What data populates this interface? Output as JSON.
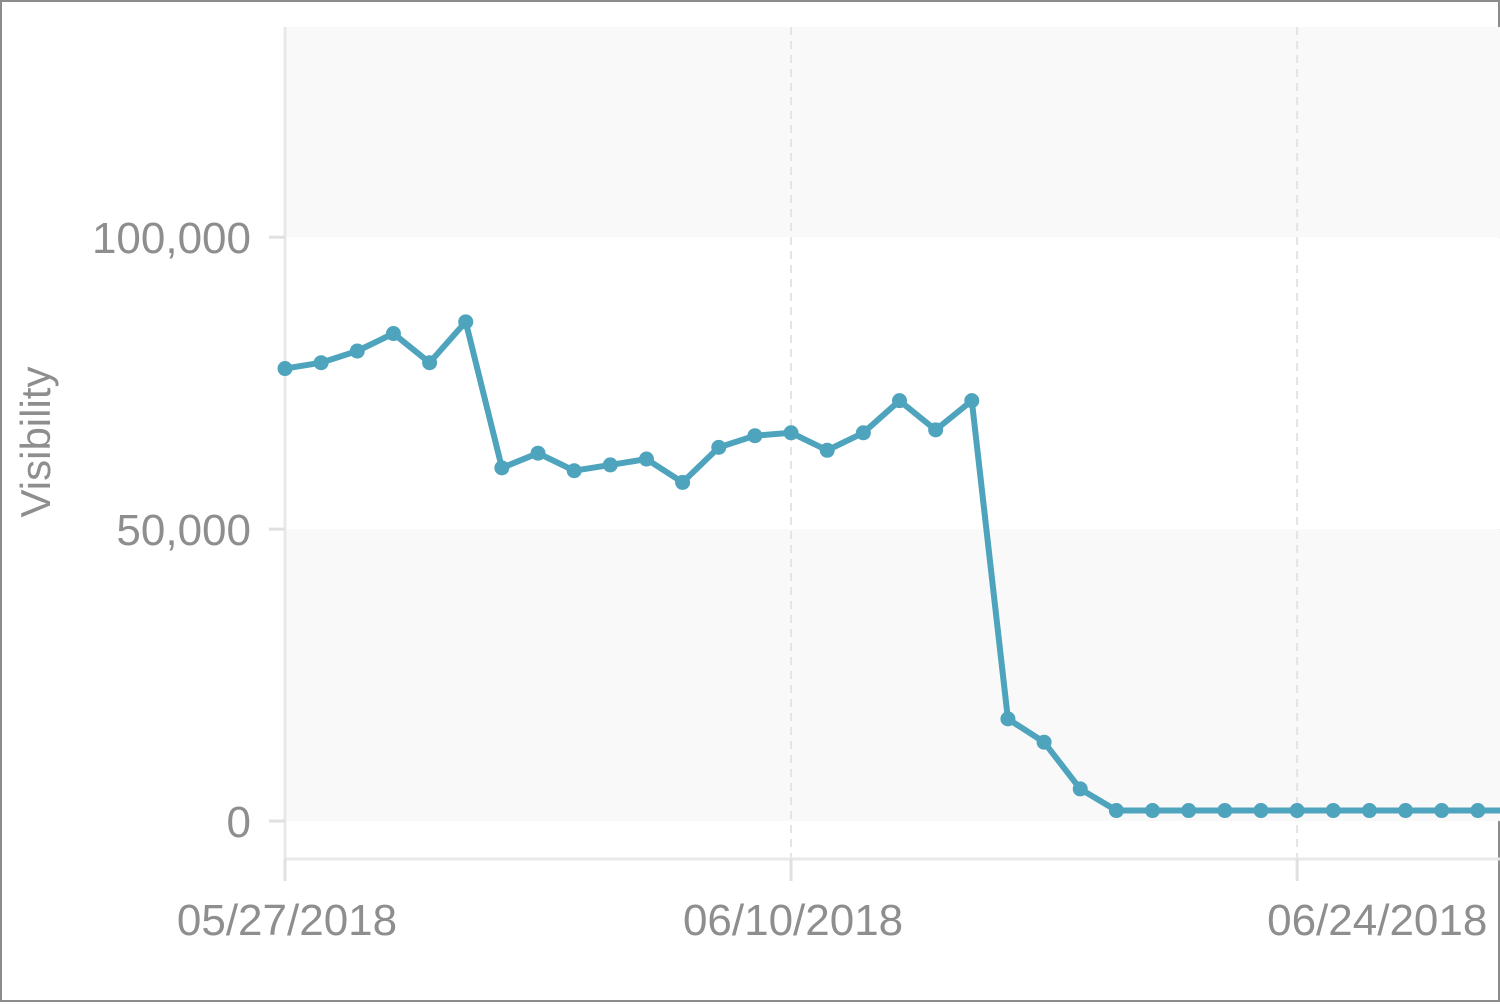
{
  "chart_data": {
    "type": "line",
    "ylabel": "Visibility",
    "xlabel": "",
    "ylim": [
      -6500,
      136000
    ],
    "yticks": [
      0,
      50000,
      100000
    ],
    "ytick_labels": [
      "0",
      "50,000",
      "100,000"
    ],
    "xticks": [
      "2018-05-27",
      "2018-06-10",
      "2018-06-24"
    ],
    "xtick_labels": [
      "05/27/2018",
      "06/10/2018",
      "06/24/2018"
    ],
    "xlim": [
      "2018-05-27",
      "2018-06-30"
    ],
    "grid": true,
    "line_color": "#4ea3bd",
    "series": [
      {
        "x": [
          "2018-05-27",
          "2018-05-28",
          "2018-05-29",
          "2018-05-30",
          "2018-05-31",
          "2018-06-01",
          "2018-06-02",
          "2018-06-03",
          "2018-06-04",
          "2018-06-05",
          "2018-06-06",
          "2018-06-07",
          "2018-06-08",
          "2018-06-09",
          "2018-06-10",
          "2018-06-11",
          "2018-06-12",
          "2018-06-13",
          "2018-06-14",
          "2018-06-15",
          "2018-06-16",
          "2018-06-17",
          "2018-06-18",
          "2018-06-19",
          "2018-06-20",
          "2018-06-21",
          "2018-06-22",
          "2018-06-23",
          "2018-06-24",
          "2018-06-25",
          "2018-06-26",
          "2018-06-27",
          "2018-06-28",
          "2018-06-29",
          "2018-06-30"
        ],
        "values": [
          77500,
          78500,
          80500,
          83500,
          78500,
          85500,
          60500,
          63000,
          60000,
          61000,
          62000,
          58000,
          64000,
          66000,
          66500,
          63500,
          66500,
          72000,
          67000,
          72000,
          17500,
          13500,
          5500,
          1800,
          1800,
          1800,
          1800,
          1800,
          1800,
          1800,
          1800,
          1800,
          1800,
          1800,
          1800
        ]
      }
    ]
  }
}
